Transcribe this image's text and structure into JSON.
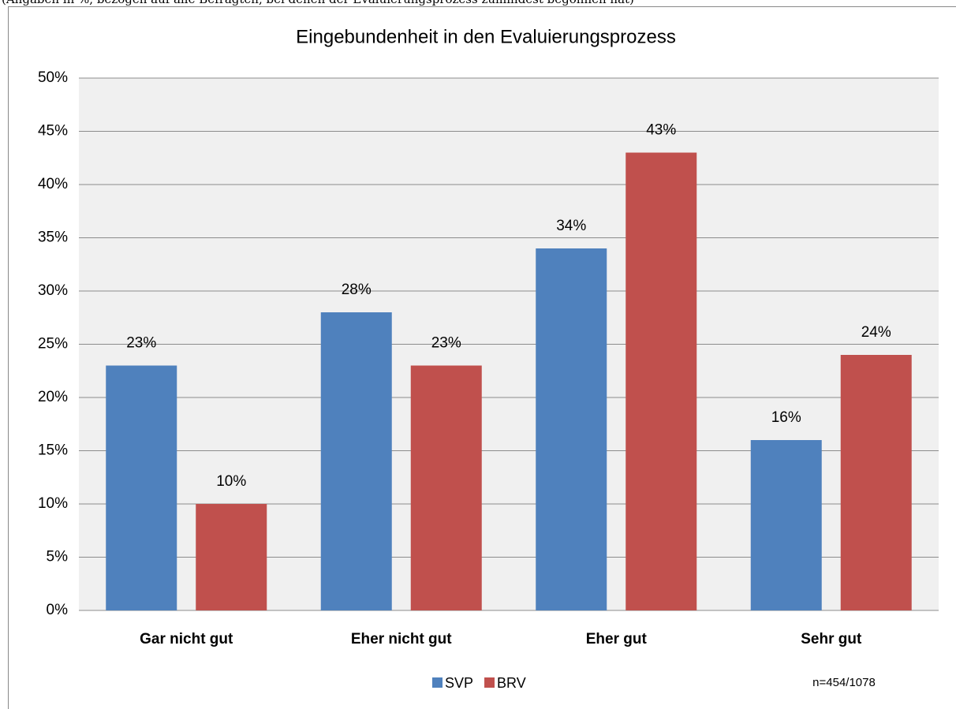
{
  "chart_data": {
    "type": "bar",
    "caption": "(Angaben in %, bezogen auf alle Befragten, bei denen der Evaluierungsprozess zumindest begonnen hat)",
    "title": "Eingebundenheit in den Evaluierungsprozess",
    "categories": [
      "Gar nicht gut",
      "Eher nicht gut",
      "Eher gut",
      "Sehr gut"
    ],
    "series": [
      {
        "name": "SVP",
        "color": "#4f81bd",
        "values": [
          23,
          28,
          34,
          16
        ],
        "value_labels": [
          "23%",
          "28%",
          "34%",
          "16%"
        ]
      },
      {
        "name": "BRV",
        "color": "#c0504d",
        "values": [
          10,
          23,
          43,
          24
        ],
        "value_labels": [
          "10%",
          "23%",
          "43%",
          "24%"
        ]
      }
    ],
    "ylim": [
      0,
      50
    ],
    "yticks": [
      {
        "value": 0,
        "label": "0%"
      },
      {
        "value": 5,
        "label": "5%"
      },
      {
        "value": 10,
        "label": "10%"
      },
      {
        "value": 15,
        "label": "15%"
      },
      {
        "value": 20,
        "label": "20%"
      },
      {
        "value": 25,
        "label": "25%"
      },
      {
        "value": 30,
        "label": "30%"
      },
      {
        "value": 35,
        "label": "35%"
      },
      {
        "value": 40,
        "label": "40%"
      },
      {
        "value": 45,
        "label": "45%"
      },
      {
        "value": 50,
        "label": "50%"
      }
    ],
    "grid": true,
    "legend": "bottom",
    "note": "n=454/1078"
  }
}
